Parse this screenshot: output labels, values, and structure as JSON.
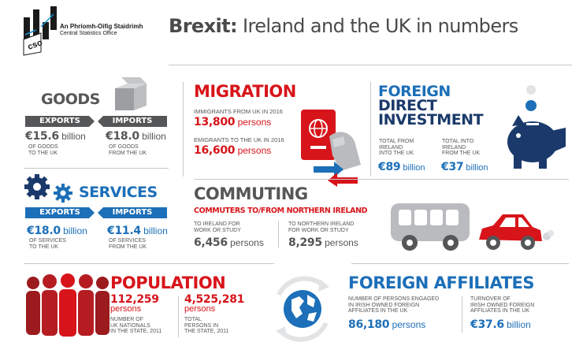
{
  "header": {
    "org_name_irish": "An Phríomh-Oifig Staidrimh",
    "org_name_english": "Central Statistics Office",
    "logo_text": "cso",
    "title_bold": "Brexit:",
    "title_rest": " Ireland and the UK in numbers"
  },
  "goods": {
    "title": "GOODS",
    "exports_label": "EXPORTS",
    "imports_label": "IMPORTS",
    "exports_value": "€15.6",
    "exports_unit": " billion",
    "exports_desc": [
      "OF GOODS",
      "TO THE UK"
    ],
    "imports_value": "€18.0",
    "imports_unit": " billion",
    "imports_desc": [
      "OF GOODS",
      "FROM THE UK"
    ]
  },
  "services": {
    "title": "SERVICES",
    "exports_label": "EXPORTS",
    "imports_label": "IMPORTS",
    "exports_value": "€18.0",
    "exports_unit": " billion",
    "exports_desc": [
      "OF SERVICES",
      "TO THE UK"
    ],
    "imports_value": "€11.4",
    "imports_unit": " billion",
    "imports_desc": [
      "OF SERVICES",
      "FROM THE UK"
    ]
  },
  "migration": {
    "title": "MIGRATION",
    "immigrants_label": "IMMIGRANTS FROM UK IN 2016",
    "immigrants_value": "13,800",
    "immigrants_unit": " persons",
    "emigrants_label": "EMIGRANTS TO THE UK IN 2016",
    "emigrants_value": "16,600",
    "emigrants_unit": " persons"
  },
  "fdi": {
    "title_lines": [
      "FOREIGN",
      "DIRECT",
      "INVESTMENT"
    ],
    "from_label": [
      "TOTAL FROM",
      "IRELAND",
      "INTO THE UK"
    ],
    "from_value": "€89",
    "from_unit": " billion",
    "into_label": [
      "TOTAL INTO",
      "IRELAND",
      "FROM THE UK"
    ],
    "into_value": "€37",
    "into_unit": " billion"
  },
  "commuting": {
    "title": "COMMUTING",
    "subtitle": "COMMUTERS TO/FROM NORTHERN IRELAND",
    "to_ireland_label": [
      "TO IRELAND FOR",
      "WORK OR STUDY"
    ],
    "to_ireland_value": "6,456",
    "to_ireland_unit": " persons",
    "to_ni_label": [
      "TO NORTHERN IRELAND",
      "FOR WORK OR STUDY"
    ],
    "to_ni_value": "8,295",
    "to_ni_unit": " persons"
  },
  "population": {
    "title": "POPULATION",
    "uk_nationals_value": "112,259",
    "uk_nationals_unit": "persons",
    "uk_nationals_desc": [
      "NUMBER OF",
      "UK NATIONALS",
      "IN THE STATE, 2011"
    ],
    "total_value": "4,525,281",
    "total_unit": "persons",
    "total_desc": [
      "TOTAL",
      "PERSONS IN",
      "THE STATE, 2011"
    ]
  },
  "affiliates": {
    "title": "FOREIGN AFFILIATES",
    "persons_label": [
      "NUMBER OF PERSONS ENGAGED",
      "IN IRISH OWNED FOREIGN",
      "AFFILIATES IN THE UK"
    ],
    "persons_value": "86,180",
    "persons_unit": " persons",
    "turnover_label": [
      "TURNOVER OF",
      "IRISH OWNED FOREIGN",
      "AFFILIATES IN THE UK"
    ],
    "turnover_value": "€37.6",
    "turnover_unit": " billion"
  },
  "colors": {
    "red": "#d7141a",
    "blue": "#1c6fb8",
    "navy": "#1b3a6b",
    "grey": "#555658"
  },
  "icons": [
    "cso-logo",
    "box-icon",
    "gears-icon",
    "passport-icon",
    "piggy-bank-icon",
    "bus-icon",
    "car-icon",
    "people-icon",
    "globe-icon"
  ]
}
